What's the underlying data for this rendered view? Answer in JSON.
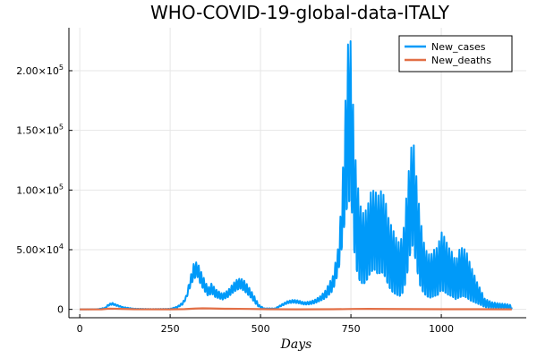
{
  "chart_data": {
    "type": "line",
    "title": "WHO-COVID-19-global-data-ITALY",
    "xlabel": "Days",
    "ylabel": "",
    "xlim": [
      -30,
      1235
    ],
    "ylim": [
      -7000,
      2360000
    ],
    "ylim_note": "",
    "x_ticks": [
      0,
      250,
      500,
      750,
      1000
    ],
    "x_tick_labels": [
      "0",
      "250",
      "500",
      "750",
      "1000"
    ],
    "y_ticks": [
      0,
      50000,
      100000,
      150000,
      200000
    ],
    "y_tick_labels": [
      {
        "mantissa": "0",
        "exp": ""
      },
      {
        "mantissa": "5.00×10",
        "exp": "4"
      },
      {
        "mantissa": "1.00×10",
        "exp": "5"
      },
      {
        "mantissa": "1.50×10",
        "exp": "5"
      },
      {
        "mantissa": "2.00×10",
        "exp": "5"
      }
    ],
    "grid": true,
    "legend_position": "top-right",
    "series": [
      {
        "name": "New_cases",
        "color": "#009af9",
        "envelope_x": [
          0,
          50,
          70,
          80,
          90,
          100,
          120,
          150,
          200,
          250,
          270,
          285,
          295,
          305,
          315,
          325,
          335,
          345,
          355,
          365,
          375,
          385,
          395,
          410,
          425,
          435,
          445,
          455,
          465,
          475,
          485,
          495,
          510,
          540,
          560,
          575,
          590,
          605,
          620,
          635,
          650,
          665,
          680,
          700,
          715,
          725,
          735,
          742,
          748,
          752,
          758,
          765,
          775,
          785,
          795,
          805,
          815,
          825,
          835,
          845,
          855,
          865,
          875,
          885,
          895,
          905,
          915,
          922,
          930,
          940,
          950,
          960,
          970,
          980,
          990,
          1000,
          1010,
          1020,
          1030,
          1040,
          1050,
          1060,
          1070,
          1080,
          1090,
          1100,
          1110,
          1120,
          1140,
          1160,
          1180,
          1195
        ],
        "envelope_hi": [
          0,
          200,
          1500,
          4500,
          5500,
          4200,
          2000,
          600,
          300,
          500,
          2500,
          6000,
          12000,
          26000,
          38000,
          40000,
          32000,
          25000,
          18000,
          22000,
          17000,
          15000,
          13000,
          16000,
          22000,
          25000,
          26000,
          24000,
          20000,
          15000,
          10000,
          4000,
          900,
          800,
          4500,
          7000,
          8000,
          7500,
          6000,
          6500,
          8000,
          11000,
          16000,
          28000,
          52000,
          95000,
          175000,
          222000,
          228000,
          215000,
          150000,
          115000,
          88000,
          80000,
          85000,
          98000,
          100000,
          95000,
          100000,
          92000,
          75000,
          68000,
          60000,
          55000,
          65000,
          100000,
          132000,
          145000,
          115000,
          82000,
          58000,
          48000,
          45000,
          50000,
          52000,
          65000,
          60000,
          52000,
          48000,
          40000,
          50000,
          52000,
          48000,
          38000,
          30000,
          22000,
          16000,
          9000,
          6000,
          5000,
          4500,
          3500
        ],
        "envelope_lo": [
          0,
          100,
          800,
          3000,
          4000,
          3000,
          1200,
          300,
          100,
          200,
          1500,
          4000,
          9000,
          18000,
          25000,
          27000,
          20000,
          15000,
          11000,
          13000,
          10000,
          9000,
          8000,
          10000,
          14000,
          16000,
          17000,
          15000,
          12000,
          9000,
          5000,
          2000,
          500,
          500,
          3000,
          5000,
          5500,
          5000,
          4000,
          4000,
          5000,
          7000,
          9000,
          15000,
          30000,
          50000,
          75000,
          82000,
          85000,
          80000,
          48000,
          30000,
          20000,
          18000,
          22000,
          28000,
          30000,
          26000,
          28000,
          24000,
          16000,
          12000,
          10000,
          9000,
          12000,
          25000,
          45000,
          50000,
          35000,
          18000,
          12000,
          9000,
          8000,
          9000,
          10000,
          14000,
          12000,
          10000,
          9000,
          7000,
          8000,
          9000,
          8000,
          6000,
          5000,
          4000,
          3000,
          1500,
          1000,
          800,
          600,
          400
        ],
        "period_days": 7
      },
      {
        "name": "New_deaths",
        "color": "#e26f46",
        "x": [
          0,
          60,
          80,
          100,
          150,
          250,
          290,
          320,
          340,
          360,
          400,
          440,
          470,
          520,
          600,
          700,
          740,
          760,
          800,
          850,
          920,
          1000,
          1100,
          1195
        ],
        "y": [
          0,
          30,
          600,
          500,
          100,
          20,
          200,
          700,
          900,
          800,
          500,
          450,
          350,
          100,
          50,
          100,
          250,
          350,
          400,
          300,
          200,
          150,
          100,
          50
        ]
      }
    ]
  }
}
